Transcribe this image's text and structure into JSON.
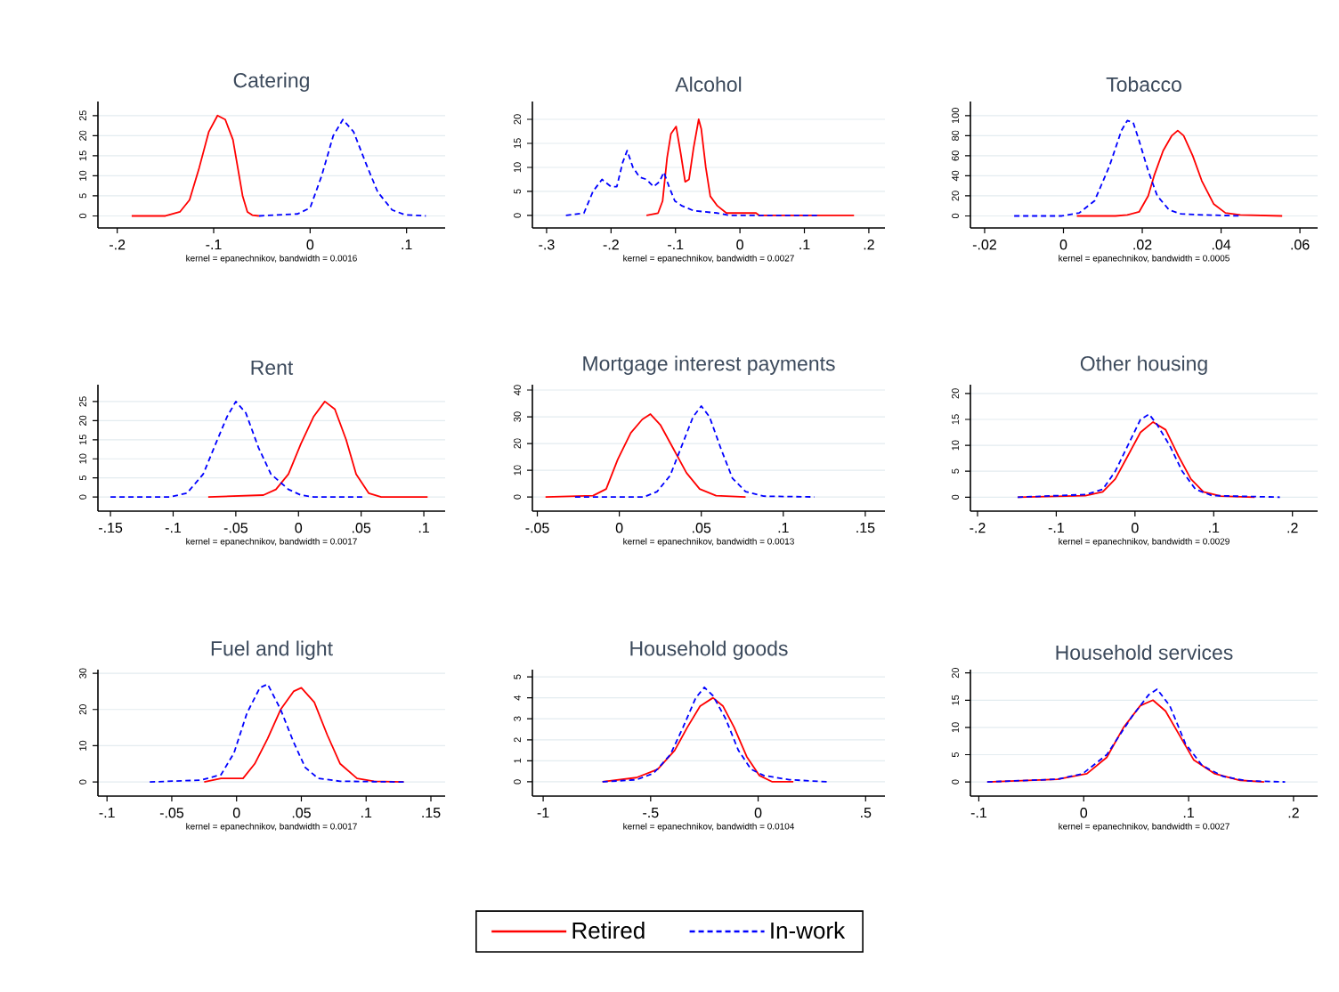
{
  "chart_data": [
    {
      "type": "line",
      "title": "Catering",
      "xlabel": "kernel = epanechnikov, bandwidth = 0.0016",
      "grid": "y",
      "xlim": [
        -0.22,
        0.14
      ],
      "ylim": [
        -3,
        28.5
      ],
      "xticks": [
        {
          "value": -0.2,
          "label": "-.2"
        },
        {
          "value": -0.1,
          "label": "-.1"
        },
        0,
        {
          "value": 0.1,
          "label": ".1"
        }
      ],
      "yticks": [
        0,
        5,
        10,
        15,
        20,
        25
      ],
      "series": [
        {
          "color": "#ff0000",
          "line_style": "solid",
          "x": [
            -0.185,
            -0.15,
            -0.135,
            -0.125,
            -0.115,
            -0.105,
            -0.096,
            -0.088,
            -0.08,
            -0.075,
            -0.07,
            -0.065,
            -0.06,
            -0.053
          ],
          "values": [
            0,
            0,
            1,
            4,
            12,
            21,
            25,
            24,
            19,
            12,
            5,
            1,
            0.2,
            0
          ]
        },
        {
          "color": "#0000ff",
          "line_style": "dashed",
          "x": [
            -0.053,
            -0.013,
            0,
            0.012,
            0.024,
            0.034,
            0.045,
            0.058,
            0.07,
            0.085,
            0.098,
            0.12
          ],
          "values": [
            0,
            0.5,
            2,
            10,
            20,
            24,
            21,
            13,
            6,
            1.5,
            0.3,
            0
          ]
        }
      ]
    },
    {
      "type": "line",
      "title": "Alcohol",
      "xlabel": "kernel = epanechnikov, bandwidth = 0.0027",
      "grid": "y",
      "xlim": [
        -0.322,
        0.225
      ],
      "ylim": [
        -2.6,
        23.7
      ],
      "xticks": [
        {
          "value": -0.3,
          "label": "-.3"
        },
        {
          "value": -0.2,
          "label": "-.2"
        },
        {
          "value": -0.1,
          "label": "-.1"
        },
        0,
        {
          "value": 0.1,
          "label": ".1"
        },
        {
          "value": 0.2,
          "label": ".2"
        }
      ],
      "yticks": [
        0,
        5,
        10,
        15,
        20
      ],
      "series": [
        {
          "color": "#ff0000",
          "line_style": "solid",
          "x": [
            -0.145,
            -0.127,
            -0.12,
            -0.113,
            -0.107,
            -0.099,
            -0.092,
            -0.085,
            -0.079,
            -0.072,
            -0.064,
            -0.06,
            -0.053,
            -0.046,
            -0.035,
            -0.021,
            0.025,
            0.03,
            0.177
          ],
          "values": [
            0,
            0.5,
            3,
            12,
            17,
            18.5,
            13,
            7,
            7.5,
            14,
            20,
            18,
            10,
            4,
            2,
            0.5,
            0.5,
            0,
            0
          ]
        },
        {
          "color": "#0000ff",
          "line_style": "dashed",
          "x": [
            -0.27,
            -0.242,
            -0.228,
            -0.214,
            -0.2,
            -0.191,
            -0.182,
            -0.175,
            -0.166,
            -0.156,
            -0.145,
            -0.134,
            -0.125,
            -0.118,
            -0.11,
            -0.101,
            -0.09,
            -0.072,
            -0.035,
            -0.016,
            0.02,
            0.12
          ],
          "values": [
            0,
            0.5,
            5,
            7.5,
            6,
            6,
            11,
            13.5,
            10,
            8,
            7.5,
            6,
            7,
            9,
            6,
            3,
            2,
            1,
            0.5,
            0,
            0,
            0
          ]
        }
      ]
    },
    {
      "type": "line",
      "title": "Tobacco",
      "xlabel": "kernel = epanechnikov, bandwidth = 0.0005",
      "grid": "y",
      "xlim": [
        -0.0236,
        0.0645
      ],
      "ylim": [
        -12,
        114
      ],
      "xticks": [
        {
          "value": -0.02,
          "label": "-.02"
        },
        0,
        {
          "value": 0.02,
          "label": ".02"
        },
        {
          "value": 0.04,
          "label": ".04"
        },
        {
          "value": 0.06,
          "label": ".06"
        }
      ],
      "yticks": [
        0,
        20,
        40,
        60,
        80,
        100
      ],
      "series": [
        {
          "color": "#ff0000",
          "line_style": "solid",
          "x": [
            0.0034,
            0.0132,
            0.0162,
            0.0192,
            0.0215,
            0.023,
            0.0253,
            0.0275,
            0.029,
            0.0305,
            0.0328,
            0.0351,
            0.0381,
            0.0411,
            0.0449,
            0.0555
          ],
          "values": [
            0,
            0,
            1,
            4,
            20,
            40,
            65,
            80,
            85,
            80,
            60,
            35,
            12,
            3,
            1,
            0
          ]
        },
        {
          "color": "#0000ff",
          "line_style": "dashed",
          "x": [
            -0.0125,
            -0.0004,
            0.004,
            0.0079,
            0.0117,
            0.0147,
            0.0162,
            0.0177,
            0.0192,
            0.0215,
            0.0238,
            0.0268,
            0.0298,
            0.0358,
            0.0449
          ],
          "values": [
            0,
            0,
            3,
            15,
            50,
            85,
            95,
            93,
            75,
            45,
            20,
            6,
            2,
            1,
            0
          ]
        }
      ]
    },
    {
      "type": "line",
      "title": "Rent",
      "xlabel": "kernel = epanechnikov, bandwidth = 0.0017",
      "grid": "y",
      "xlim": [
        -0.16,
        0.117
      ],
      "ylim": [
        -3.7,
        29.4
      ],
      "xticks": [
        {
          "value": -0.15,
          "label": "-.15"
        },
        {
          "value": -0.1,
          "label": "-.1"
        },
        {
          "value": -0.05,
          "label": "-.05"
        },
        0,
        {
          "value": 0.05,
          "label": ".05"
        },
        {
          "value": 0.1,
          "label": ".1"
        }
      ],
      "yticks": [
        0,
        5,
        10,
        15,
        20,
        25
      ],
      "series": [
        {
          "color": "#ff0000",
          "line_style": "solid",
          "x": [
            -0.072,
            -0.028,
            -0.018,
            -0.008,
            0.002,
            0.012,
            0.021,
            0.029,
            0.038,
            0.046,
            0.056,
            0.066,
            0.103
          ],
          "values": [
            0,
            0.5,
            2,
            6,
            14,
            21,
            25,
            23,
            15,
            6,
            1,
            0,
            0
          ]
        },
        {
          "color": "#0000ff",
          "line_style": "dashed",
          "x": [
            -0.15,
            -0.103,
            -0.089,
            -0.076,
            -0.066,
            -0.057,
            -0.05,
            -0.042,
            -0.032,
            -0.022,
            -0.008,
            0.002,
            0.012,
            0.053
          ],
          "values": [
            0,
            0,
            1,
            6,
            14,
            21,
            25,
            22,
            13,
            6,
            2,
            0.5,
            0,
            0
          ]
        }
      ]
    },
    {
      "type": "line",
      "title": "Mortgage interest payments",
      "xlabel": "kernel = epanechnikov, bandwidth = 0.0013",
      "grid": "y",
      "xlim": [
        -0.053,
        0.162
      ],
      "ylim": [
        -5.3,
        42
      ],
      "xticks": [
        {
          "value": -0.05,
          "label": "-.05"
        },
        0,
        {
          "value": 0.05,
          "label": ".05"
        },
        {
          "value": 0.1,
          "label": ".1"
        },
        {
          "value": 0.15,
          "label": ".15"
        }
      ],
      "yticks": [
        0,
        10,
        20,
        30,
        40
      ],
      "series": [
        {
          "color": "#ff0000",
          "line_style": "solid",
          "x": [
            -0.045,
            -0.016,
            -0.008,
            -0.001,
            0.007,
            0.014,
            0.019,
            0.025,
            0.033,
            0.041,
            0.049,
            0.059,
            0.077
          ],
          "values": [
            0,
            0.5,
            3,
            14,
            24,
            29,
            31,
            27,
            18,
            9,
            3,
            0.5,
            0
          ]
        },
        {
          "color": "#0000ff",
          "line_style": "dashed",
          "x": [
            -0.027,
            0.015,
            0.023,
            0.031,
            0.038,
            0.045,
            0.05,
            0.055,
            0.062,
            0.069,
            0.077,
            0.088,
            0.119
          ],
          "values": [
            0,
            0,
            2,
            8,
            19,
            30,
            34,
            30,
            18,
            7,
            2,
            0.3,
            0
          ]
        }
      ]
    },
    {
      "type": "line",
      "title": "Other housing",
      "xlabel": "kernel = epanechnikov, bandwidth = 0.0029",
      "grid": "y",
      "xlim": [
        -0.209,
        0.232
      ],
      "ylim": [
        -2.7,
        21.7
      ],
      "xticks": [
        {
          "value": -0.2,
          "label": "-.2"
        },
        {
          "value": -0.1,
          "label": "-.1"
        },
        0,
        {
          "value": 0.1,
          "label": ".1"
        },
        {
          "value": 0.2,
          "label": ".2"
        }
      ],
      "yticks": [
        0,
        5,
        10,
        15,
        20
      ],
      "series": [
        {
          "color": "#ff0000",
          "line_style": "solid",
          "x": [
            -0.149,
            -0.063,
            -0.041,
            -0.025,
            -0.009,
            0.007,
            0.023,
            0.039,
            0.055,
            0.071,
            0.087,
            0.109,
            0.152
          ],
          "values": [
            0,
            0.3,
            1,
            3.5,
            8,
            12.5,
            14.5,
            13,
            8,
            3.5,
            1,
            0.2,
            0
          ]
        },
        {
          "color": "#0000ff",
          "line_style": "dashed",
          "x": [
            -0.149,
            -0.063,
            -0.041,
            -0.025,
            -0.009,
            0.007,
            0.018,
            0.028,
            0.044,
            0.06,
            0.077,
            0.098,
            0.184
          ],
          "values": [
            0,
            0.5,
            1.5,
            5,
            10,
            15,
            16,
            14,
            10,
            5,
            1.5,
            0.3,
            0
          ]
        }
      ]
    },
    {
      "type": "line",
      "title": "Fuel and light",
      "xlabel": "kernel = epanechnikov, bandwidth = 0.0017",
      "grid": "y",
      "xlim": [
        -0.107,
        0.161
      ],
      "ylim": [
        -3.9,
        31
      ],
      "xticks": [
        {
          "value": -0.1,
          "label": "-.1"
        },
        {
          "value": -0.05,
          "label": "-.05"
        },
        0,
        {
          "value": 0.05,
          "label": ".05"
        },
        {
          "value": 0.1,
          "label": ".1"
        },
        {
          "value": 0.15,
          "label": ".15"
        }
      ],
      "yticks": [
        0,
        10,
        20,
        30
      ],
      "series": [
        {
          "color": "#ff0000",
          "line_style": "solid",
          "x": [
            -0.025,
            -0.012,
            0.005,
            0.014,
            0.024,
            0.034,
            0.044,
            0.05,
            0.06,
            0.07,
            0.08,
            0.093,
            0.106,
            0.129
          ],
          "values": [
            0,
            1,
            1,
            5,
            12,
            20,
            25,
            26,
            22,
            13,
            5,
            1,
            0.2,
            0
          ]
        },
        {
          "color": "#0000ff",
          "line_style": "dashed",
          "x": [
            -0.067,
            -0.028,
            -0.012,
            -0.002,
            0.008,
            0.018,
            0.024,
            0.034,
            0.044,
            0.053,
            0.063,
            0.08,
            0.129
          ],
          "values": [
            0,
            0.5,
            2,
            8,
            19,
            26,
            27,
            20,
            11,
            4,
            1,
            0.2,
            0
          ]
        }
      ]
    },
    {
      "type": "line",
      "title": "Household goods",
      "xlabel": "kernel = epanechnikov, bandwidth = 0.0104",
      "grid": "y",
      "xlim": [
        -1.05,
        0.59
      ],
      "ylim": [
        -0.68,
        5.34
      ],
      "xticks": [
        -1,
        {
          "value": -0.5,
          "label": "-.5"
        },
        0,
        {
          "value": 0.5,
          "label": ".5"
        }
      ],
      "yticks": [
        0,
        1,
        2,
        3,
        4,
        5
      ],
      "series": [
        {
          "color": "#ff0000",
          "line_style": "solid",
          "x": [
            -0.724,
            -0.566,
            -0.467,
            -0.388,
            -0.329,
            -0.27,
            -0.21,
            -0.163,
            -0.112,
            -0.053,
            0.006,
            0.066,
            0.164
          ],
          "values": [
            0,
            0.2,
            0.6,
            1.5,
            2.6,
            3.6,
            4.0,
            3.6,
            2.6,
            1.2,
            0.3,
            0,
            0
          ]
        },
        {
          "color": "#0000ff",
          "line_style": "dashed",
          "x": [
            -0.724,
            -0.566,
            -0.487,
            -0.408,
            -0.349,
            -0.29,
            -0.25,
            -0.21,
            -0.151,
            -0.092,
            -0.033,
            0.026,
            0.145,
            0.322
          ],
          "values": [
            0,
            0.1,
            0.4,
            1.3,
            2.6,
            4.0,
            4.5,
            4.1,
            3,
            1.5,
            0.6,
            0.3,
            0.1,
            0
          ]
        }
      ]
    },
    {
      "type": "line",
      "title": "Household services",
      "xlabel": "kernel = epanechnikov, bandwidth = 0.0027",
      "grid": "y",
      "legend": "bottom",
      "xlim": [
        -0.108,
        0.223
      ],
      "ylim": [
        -2.6,
        20.6
      ],
      "xticks": [
        {
          "value": -0.1,
          "label": "-.1"
        },
        0,
        {
          "value": 0.1,
          "label": ".1"
        },
        {
          "value": 0.2,
          "label": ".2"
        }
      ],
      "yticks": [
        0,
        5,
        10,
        15,
        20
      ],
      "series": [
        {
          "name": "Retired",
          "color": "#ff0000",
          "line_style": "solid",
          "x": [
            -0.092,
            -0.025,
            0.003,
            0.022,
            0.038,
            0.054,
            0.066,
            0.078,
            0.093,
            0.105,
            0.125,
            0.149,
            0.172
          ],
          "values": [
            0,
            0.5,
            1.5,
            4.5,
            10,
            14,
            15,
            13,
            8,
            4,
            1.5,
            0.3,
            0
          ]
        },
        {
          "name": "In-work",
          "color": "#0000ff",
          "line_style": "dashed",
          "x": [
            -0.092,
            -0.025,
            -0.001,
            0.022,
            0.046,
            0.062,
            0.07,
            0.082,
            0.097,
            0.113,
            0.133,
            0.156,
            0.192
          ],
          "values": [
            0,
            0.5,
            1.5,
            5,
            12,
            16,
            17,
            14,
            7,
            3,
            1,
            0.2,
            0
          ]
        }
      ]
    }
  ]
}
